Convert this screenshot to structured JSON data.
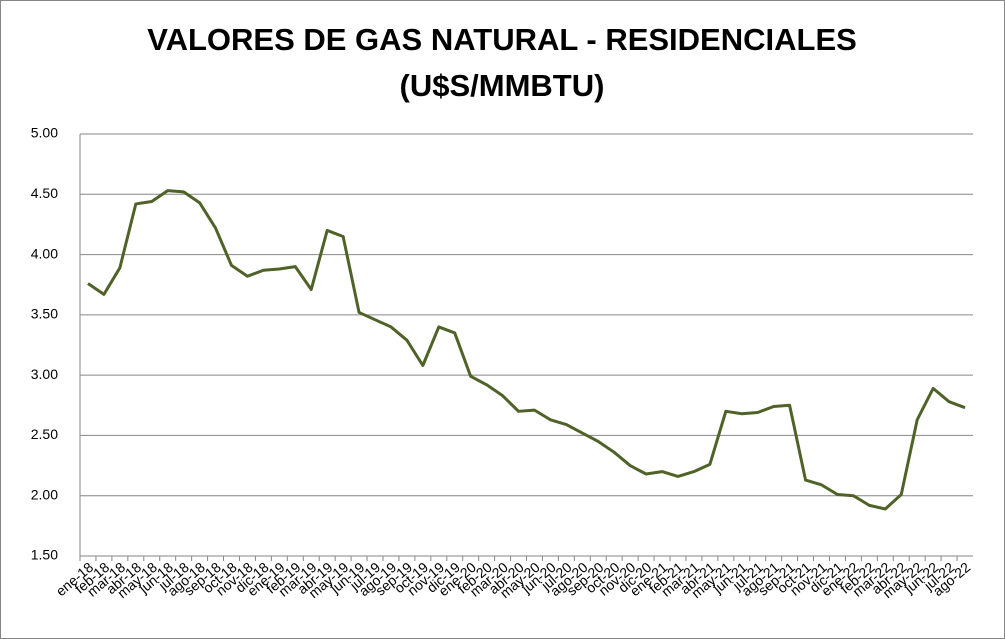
{
  "chart_data": {
    "type": "line",
    "title": [
      "VALORES DE GAS NATURAL - RESIDENCIALES",
      "(U$S/MMBTU)"
    ],
    "categories": [
      "ene-18",
      "feb-18",
      "mar-18",
      "abr-18",
      "may-18",
      "jun-18",
      "jul-18",
      "ago-18",
      "sep-18",
      "oct-18",
      "nov-18",
      "dic-18",
      "ene-19",
      "feb-19",
      "mar-19",
      "abr-19",
      "may-19",
      "jun-19",
      "jul-19",
      "ago-19",
      "sep-19",
      "oct-19",
      "nov-19",
      "dic-19",
      "ene-20",
      "feb-20",
      "mar-20",
      "abr-20",
      "may-20",
      "jun-20",
      "jul-20",
      "ago-20",
      "sep-20",
      "oct-20",
      "nov-20",
      "dic-20",
      "ene-21",
      "feb-21",
      "mar-21",
      "abr-21",
      "may-21",
      "jun-21",
      "jul-21",
      "ago-21",
      "sep-21",
      "oct-21",
      "nov-21",
      "dic-21",
      "ene-22",
      "feb-22",
      "mar-22",
      "abr-22",
      "may-22",
      "jun-22",
      "jul-22",
      "ago-22"
    ],
    "series": [
      {
        "color": "#4f6228",
        "values": [
          3.76,
          3.67,
          3.89,
          4.42,
          4.44,
          4.53,
          4.52,
          4.43,
          4.22,
          3.91,
          3.82,
          3.87,
          3.88,
          3.9,
          3.71,
          4.2,
          4.15,
          3.52,
          3.46,
          3.4,
          3.29,
          3.08,
          3.4,
          3.35,
          2.99,
          2.92,
          2.83,
          2.7,
          2.71,
          2.63,
          2.59,
          2.52,
          2.45,
          2.36,
          2.25,
          2.18,
          2.2,
          2.16,
          2.2,
          2.26,
          2.7,
          2.68,
          2.69,
          2.74,
          2.75,
          2.13,
          2.09,
          2.01,
          2.0,
          1.92,
          1.89,
          2.01,
          2.63,
          2.89,
          2.78,
          2.73
        ]
      }
    ],
    "ylim": [
      1.5,
      5
    ],
    "yticks": [
      {
        "value": 1.5,
        "label": "1.50"
      },
      {
        "value": 2,
        "label": "2.00"
      },
      {
        "value": 2.5,
        "label": "2.50"
      },
      {
        "value": 3,
        "label": "3.00"
      },
      {
        "value": 3.5,
        "label": "3.50"
      },
      {
        "value": 4,
        "label": "4.00"
      },
      {
        "value": 4.5,
        "label": "4.50"
      },
      {
        "value": 5,
        "label": "5.00"
      }
    ],
    "grid": true
  }
}
